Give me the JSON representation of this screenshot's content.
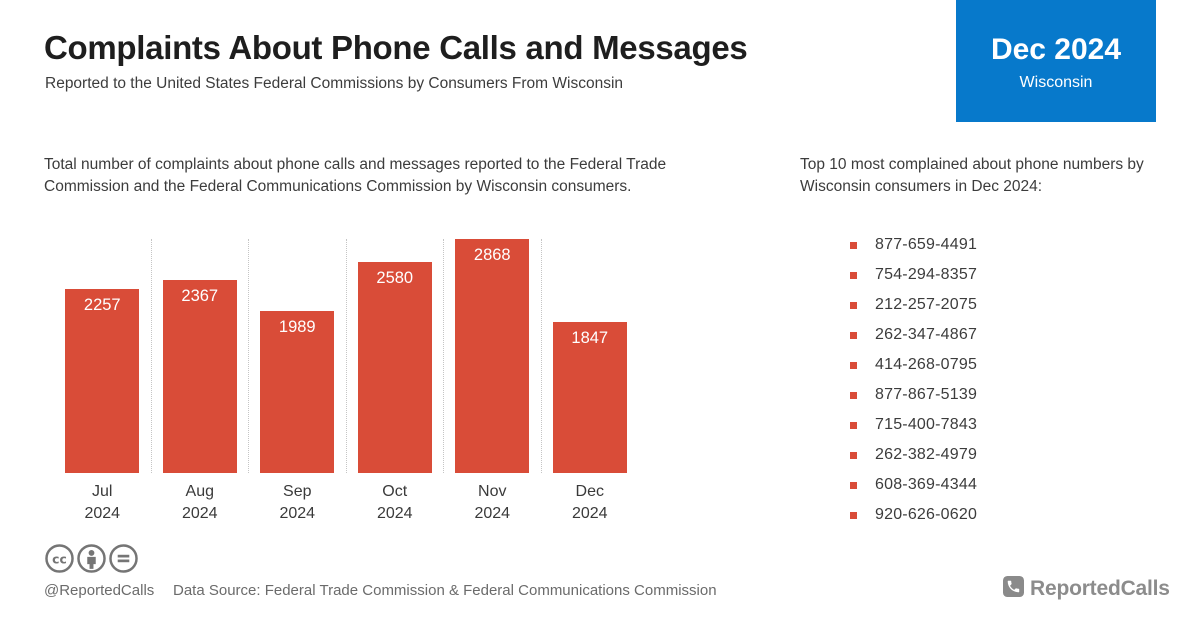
{
  "header": {
    "title": "Complaints About Phone Calls and Messages",
    "subtitle": "Reported to the United States Federal Commissions by Consumers From Wisconsin",
    "badge": {
      "period": "Dec 2024",
      "region": "Wisconsin",
      "bg_color": "#0779cb"
    }
  },
  "intro": "Total number of complaints about phone calls and messages reported to the Federal Trade Commission and the Federal Communications Commission by Wisconsin consumers.",
  "chart_data": {
    "type": "bar",
    "categories": [
      "Jul",
      "Aug",
      "Sep",
      "Oct",
      "Nov",
      "Dec"
    ],
    "category_year": "2024",
    "values": [
      2257,
      2367,
      1989,
      2580,
      2868,
      1847
    ],
    "title": "",
    "xlabel": "",
    "ylabel": "",
    "ylim": [
      0,
      2868
    ],
    "bar_color": "#d94c38",
    "value_label_color": "#ffffff",
    "grid": "dotted vertical separators between bars",
    "legend": "none"
  },
  "top_numbers": {
    "heading": "Top 10 most complained about phone numbers by Wisconsin consumers in Dec 2024:",
    "bullet_color": "#d94c38",
    "numbers": [
      "877-659-4491",
      "754-294-8357",
      "212-257-2075",
      "262-347-4867",
      "414-268-0795",
      "877-867-5139",
      "715-400-7843",
      "262-382-4979",
      "608-369-4344",
      "920-626-0620"
    ]
  },
  "footer": {
    "license_icons": [
      "cc-icon",
      "attribution-icon",
      "no-derivatives-icon"
    ],
    "handle": "@ReportedCalls",
    "data_source": "Data Source: Federal Trade Commission & Federal Communications Commission",
    "logo_text": "ReportedCalls"
  },
  "colors": {
    "accent_red": "#d94c38",
    "accent_blue": "#0779cb",
    "text_dark": "#1e1e1e",
    "text_body": "#3c3c3c",
    "text_gray": "#6b6b6b",
    "logo_gray": "#8c8c8c"
  }
}
